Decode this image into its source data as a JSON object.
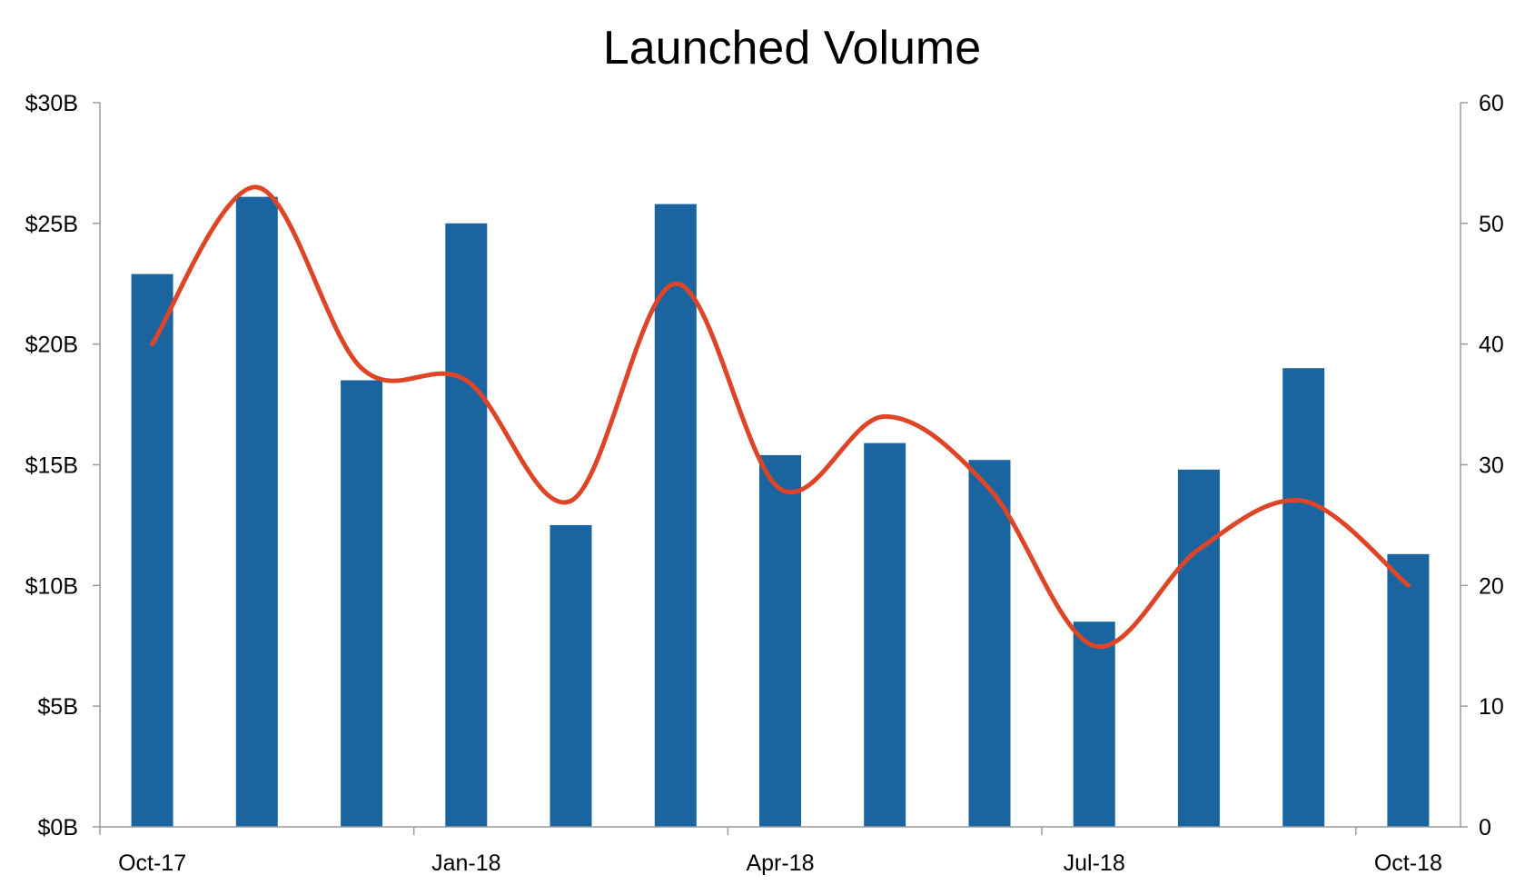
{
  "chart_data": {
    "type": "bar",
    "title": "Launched Volume",
    "categories": [
      "2017-10",
      "2017-11",
      "2017-12",
      "2018-01",
      "2018-02",
      "2018-03",
      "2018-04",
      "2018-05",
      "2018-06",
      "2018-07",
      "2018-08",
      "2018-09",
      "2018-10"
    ],
    "x_tick_labels": [
      "Oct-17",
      "Jan-18",
      "Apr-18",
      "Jul-18",
      "Oct-18"
    ],
    "x_tick_categories": [
      "2017-10",
      "2018-01",
      "2018-04",
      "2018-07",
      "2018-10"
    ],
    "y_left": {
      "ticks": [
        0,
        5,
        10,
        15,
        20,
        25,
        30
      ],
      "tick_labels": [
        "$0B",
        "$5B",
        "$10B",
        "$15B",
        "$20B",
        "$25B",
        "$30B"
      ],
      "ylim": [
        0,
        30
      ]
    },
    "y_right": {
      "ticks": [
        0,
        10,
        20,
        30,
        40,
        50,
        60
      ],
      "tick_labels": [
        "0",
        "10",
        "20",
        "30",
        "40",
        "50",
        "60"
      ],
      "ylim": [
        0,
        60
      ]
    },
    "series": [
      {
        "type": "bar",
        "axis": "left",
        "color": "#1a65a0",
        "values": [
          22.9,
          26.1,
          18.5,
          25.0,
          12.5,
          25.8,
          15.4,
          15.9,
          15.2,
          8.5,
          14.8,
          19.0,
          11.3
        ]
      },
      {
        "type": "line",
        "axis": "right",
        "smooth": true,
        "color": "#de4527",
        "values": [
          40,
          53,
          38,
          37,
          27,
          45,
          28,
          34,
          28,
          15,
          23,
          27,
          20
        ]
      }
    ],
    "grid": false,
    "legend": "none"
  }
}
